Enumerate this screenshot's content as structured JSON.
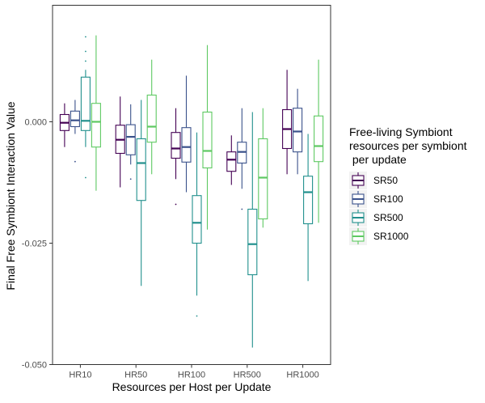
{
  "chart_data": {
    "type": "box",
    "title": "",
    "xlabel": "Resources per Host per Update",
    "ylabel": "Final Free Symbiont Interaction Value",
    "categories": [
      "HR10",
      "HR50",
      "HR100",
      "HR500",
      "HR1000"
    ],
    "ylim": [
      -0.05,
      0.024
    ],
    "yticks": [
      0.0,
      -0.025,
      -0.05
    ],
    "ytick_labels": [
      "0.000",
      "-0.025",
      "-0.050"
    ],
    "grid": false,
    "legend": {
      "title_lines": [
        "Free-living Symbiont",
        "resources per symbiont",
        " per update"
      ],
      "position": "right"
    },
    "series": [
      {
        "name": "SR50",
        "color": "#440154",
        "boxes": [
          {
            "category": "HR10",
            "min": -0.0052,
            "q1": -0.0018,
            "median": -0.0002,
            "q3": 0.0015,
            "max": 0.0038,
            "outliers": []
          },
          {
            "category": "HR50",
            "min": -0.0135,
            "q1": -0.0065,
            "median": -0.0037,
            "q3": -0.0007,
            "max": 0.0052,
            "outliers": []
          },
          {
            "category": "HR100",
            "min": -0.0118,
            "q1": -0.0075,
            "median": -0.0055,
            "q3": -0.0022,
            "max": 0.0028,
            "outliers": [
              -0.017
            ]
          },
          {
            "category": "HR500",
            "min": -0.013,
            "q1": -0.0102,
            "median": -0.0078,
            "q3": -0.0062,
            "max": -0.0028,
            "outliers": []
          },
          {
            "category": "HR1000",
            "min": -0.0108,
            "q1": -0.0055,
            "median": -0.0015,
            "q3": 0.0025,
            "max": 0.0107,
            "outliers": []
          }
        ]
      },
      {
        "name": "SR100",
        "color": "#3b528b",
        "boxes": [
          {
            "category": "HR10",
            "min": -0.0025,
            "q1": -0.001,
            "median": 0.0003,
            "q3": 0.0022,
            "max": 0.0045,
            "outliers": [
              -0.0082
            ]
          },
          {
            "category": "HR50",
            "min": -0.0088,
            "q1": -0.0068,
            "median": -0.0031,
            "q3": -0.0006,
            "max": 0.0036,
            "outliers": [
              -0.0118
            ]
          },
          {
            "category": "HR100",
            "min": -0.0145,
            "q1": -0.0083,
            "median": -0.0052,
            "q3": -0.0012,
            "max": 0.0095,
            "outliers": []
          },
          {
            "category": "HR500",
            "min": -0.0138,
            "q1": -0.0085,
            "median": -0.0062,
            "q3": -0.0042,
            "max": 0.0028,
            "outliers": [
              -0.018
            ]
          },
          {
            "category": "HR1000",
            "min": -0.0108,
            "q1": -0.0062,
            "median": -0.002,
            "q3": 0.0028,
            "max": 0.0068,
            "outliers": []
          }
        ]
      },
      {
        "name": "SR500",
        "color": "#21908d",
        "boxes": [
          {
            "category": "HR10",
            "min": -0.0052,
            "q1": -0.0018,
            "median": 0.0002,
            "q3": 0.0092,
            "max": 0.0107,
            "outliers": [
              -0.0115,
              0.0175,
              0.0145,
              0.0125
            ]
          },
          {
            "category": "HR50",
            "min": -0.0338,
            "q1": -0.0162,
            "median": -0.0085,
            "q3": -0.0035,
            "max": 0.0045,
            "outliers": []
          },
          {
            "category": "HR100",
            "min": -0.0358,
            "q1": -0.025,
            "median": -0.0208,
            "q3": -0.0152,
            "max": -0.0022,
            "outliers": [
              -0.04
            ]
          },
          {
            "category": "HR500",
            "min": -0.0465,
            "q1": -0.0315,
            "median": -0.0252,
            "q3": -0.018,
            "max": 0.002,
            "outliers": []
          },
          {
            "category": "HR1000",
            "min": -0.0328,
            "q1": -0.021,
            "median": -0.0145,
            "q3": -0.0112,
            "max": -0.0025,
            "outliers": []
          }
        ]
      },
      {
        "name": "SR1000",
        "color": "#5ec962",
        "boxes": [
          {
            "category": "HR10",
            "min": -0.0142,
            "q1": -0.0052,
            "median": 0.0,
            "q3": 0.0038,
            "max": 0.0178,
            "outliers": []
          },
          {
            "category": "HR50",
            "min": -0.0108,
            "q1": -0.0042,
            "median": -0.001,
            "q3": 0.0055,
            "max": 0.0128,
            "outliers": []
          },
          {
            "category": "HR100",
            "min": -0.0222,
            "q1": -0.0095,
            "median": -0.006,
            "q3": 0.002,
            "max": 0.0158,
            "outliers": []
          },
          {
            "category": "HR500",
            "min": -0.0218,
            "q1": -0.02,
            "median": -0.0115,
            "q3": -0.0035,
            "max": 0.0028,
            "outliers": []
          },
          {
            "category": "HR1000",
            "min": -0.0208,
            "q1": -0.0082,
            "median": -0.005,
            "q3": 0.0012,
            "max": 0.0128,
            "outliers": []
          }
        ]
      }
    ]
  }
}
